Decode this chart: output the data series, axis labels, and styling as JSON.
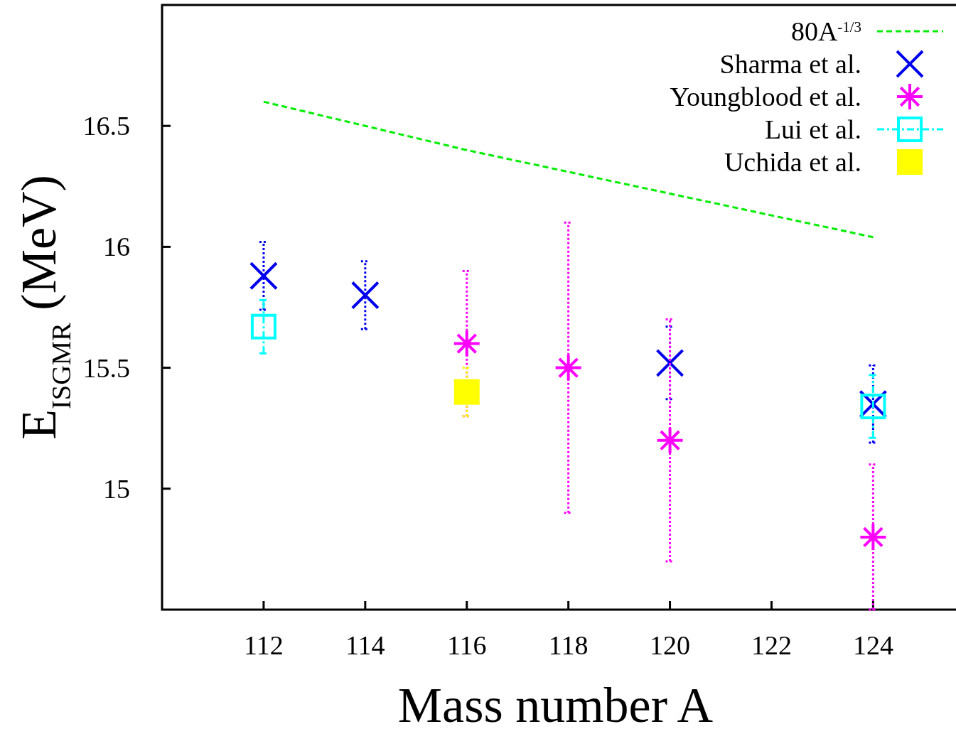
{
  "chart_data": {
    "type": "scatter",
    "xlabel": "Mass number A",
    "ylabel": "E$_{ISGMR}$ (MeV)",
    "xlim": [
      110,
      125.8
    ],
    "xticks": [
      112,
      114,
      116,
      118,
      120,
      122,
      124
    ],
    "ylim": [
      14.5,
      17
    ],
    "yticks": [
      15,
      15.5,
      16,
      16.5
    ],
    "legend": "top right",
    "grid": false,
    "series": [
      {
        "name": "80A$^{-1/3}$",
        "type": "line",
        "color": "#00ee00",
        "line_style": "dashed",
        "marker": "none",
        "x": [
          112,
          114,
          116,
          118,
          120,
          122,
          124
        ],
        "values": [
          16.6,
          16.5,
          16.4,
          16.31,
          16.22,
          16.13,
          16.04
        ]
      },
      {
        "name": "Sharma et al.",
        "color": "#0000ee",
        "marker": "cross",
        "x": [
          112,
          114,
          120,
          124
        ],
        "values": [
          15.88,
          15.8,
          15.52,
          15.35
        ],
        "errors": [
          0.14,
          0.14,
          0.15,
          0.16
        ]
      },
      {
        "name": "Youngblood et al.",
        "color": "#ff00ff",
        "marker": "star",
        "x": [
          116,
          118,
          120,
          124
        ],
        "values": [
          15.6,
          15.5,
          15.2,
          14.8
        ],
        "errors": [
          0.3,
          0.6,
          0.5,
          0.3
        ]
      },
      {
        "name": "Lui et al.",
        "color": "#00ffff",
        "marker": "square",
        "line_style": "dashed",
        "x": [
          112,
          124
        ],
        "values": [
          15.67,
          15.34
        ],
        "errors": [
          0.11,
          0.13
        ]
      },
      {
        "name": "Uchida et al.",
        "color": "#ffff00",
        "marker": "square",
        "x": [
          116
        ],
        "values": [
          15.4
        ],
        "errors": [
          0.1
        ]
      }
    ]
  }
}
